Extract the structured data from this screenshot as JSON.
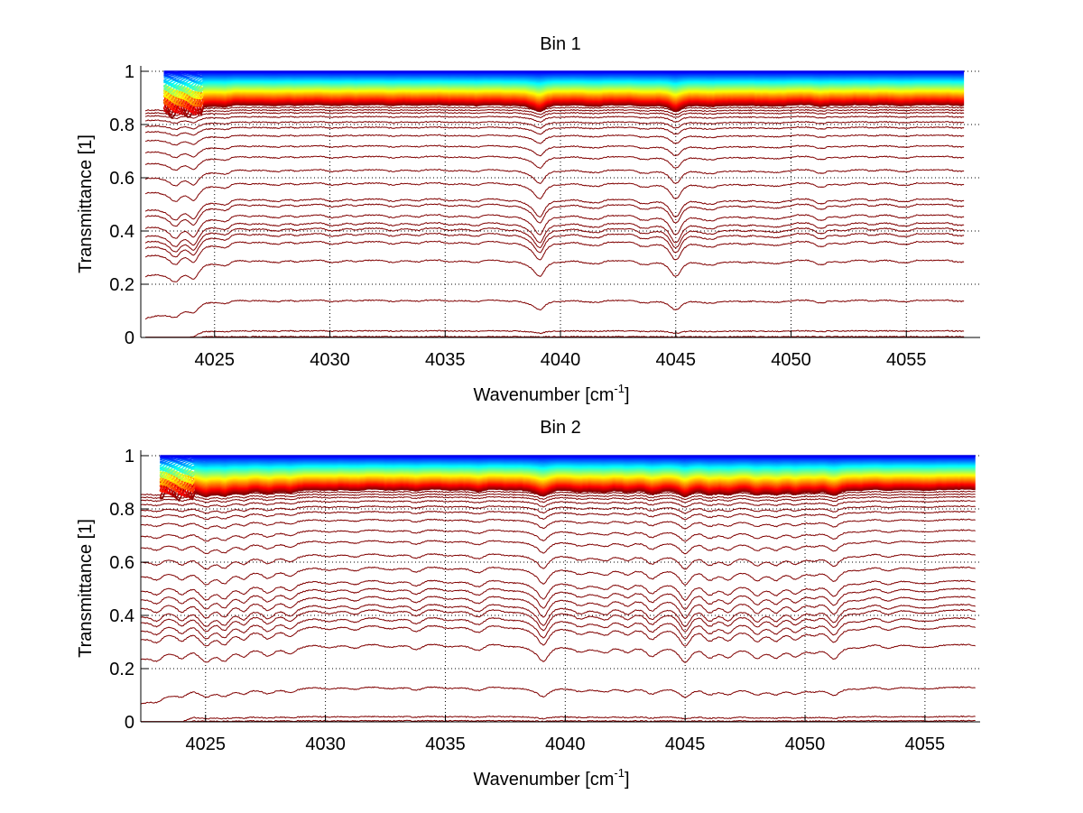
{
  "chart_data": [
    {
      "type": "line",
      "title": "Bin 1",
      "xlabel": "Wavenumber [cm",
      "xlabel_sup": "-1",
      "xlabel_end": "]",
      "ylabel": "Transmittance [1]",
      "xlim": [
        4021.8,
        4058.2
      ],
      "ylim": [
        0,
        1
      ],
      "xticks": [
        4025,
        4030,
        4035,
        4040,
        4045,
        4050,
        4055
      ],
      "yticks": [
        0,
        0.2,
        0.4,
        0.6,
        0.8,
        1
      ],
      "grid": true,
      "colormap": "jet",
      "approx_series_count": 60,
      "baseline_levels": [
        0.003,
        0.025,
        0.14,
        0.29,
        0.36,
        0.39,
        0.41,
        0.43,
        0.46,
        0.5,
        0.52,
        0.58,
        0.63,
        0.68,
        0.72,
        0.76,
        0.79,
        0.81,
        0.83,
        0.845,
        0.855,
        0.865
      ],
      "absorption_lines": [
        {
          "x": 4023.3,
          "depth": 0.9,
          "width": 0.35
        },
        {
          "x": 4024.1,
          "depth": 0.8,
          "width": 0.3
        },
        {
          "x": 4025.5,
          "depth": 0.25,
          "width": 0.3
        },
        {
          "x": 4028.5,
          "depth": 0.15,
          "width": 0.3
        },
        {
          "x": 4031.1,
          "depth": 0.1,
          "width": 0.3
        },
        {
          "x": 4033.8,
          "depth": 0.08,
          "width": 0.3
        },
        {
          "x": 4036.4,
          "depth": 0.08,
          "width": 0.3
        },
        {
          "x": 4039.1,
          "depth": 1.0,
          "width": 0.3
        },
        {
          "x": 4041.7,
          "depth": 0.18,
          "width": 0.3
        },
        {
          "x": 4043.5,
          "depth": 0.12,
          "width": 0.3
        },
        {
          "x": 4045.0,
          "depth": 1.0,
          "width": 0.3
        },
        {
          "x": 4046.6,
          "depth": 0.18,
          "width": 0.3
        },
        {
          "x": 4048.0,
          "depth": 0.22,
          "width": 0.3
        },
        {
          "x": 4049.3,
          "depth": 0.15,
          "width": 0.3
        },
        {
          "x": 4051.3,
          "depth": 0.22,
          "width": 0.3
        },
        {
          "x": 4053.4,
          "depth": 0.1,
          "width": 0.3
        },
        {
          "x": 4055.2,
          "depth": 0.08,
          "width": 0.3
        }
      ],
      "line_range": [
        4022.0,
        4057.5
      ]
    },
    {
      "type": "line",
      "title": "Bin 2",
      "xlabel": "Wavenumber [cm",
      "xlabel_sup": "-1",
      "xlabel_end": "]",
      "ylabel": "Transmittance [1]",
      "xlim": [
        4022.3,
        4057.3
      ],
      "ylim": [
        0,
        1
      ],
      "xticks": [
        4025,
        4030,
        4035,
        4040,
        4045,
        4050,
        4055
      ],
      "yticks": [
        0,
        0.2,
        0.4,
        0.6,
        0.8,
        1
      ],
      "grid": true,
      "colormap": "jet",
      "approx_series_count": 60,
      "baseline_levels": [
        0.004,
        0.02,
        0.13,
        0.29,
        0.36,
        0.39,
        0.42,
        0.44,
        0.47,
        0.5,
        0.53,
        0.58,
        0.63,
        0.68,
        0.72,
        0.76,
        0.79,
        0.81,
        0.83,
        0.845,
        0.855,
        0.865
      ],
      "absorption_lines": [
        {
          "x": 4023.0,
          "depth": 0.4,
          "width": 0.3
        },
        {
          "x": 4024.0,
          "depth": 0.45,
          "width": 0.3
        },
        {
          "x": 4025.0,
          "depth": 0.85,
          "width": 0.35
        },
        {
          "x": 4025.8,
          "depth": 0.9,
          "width": 0.3
        },
        {
          "x": 4026.6,
          "depth": 0.5,
          "width": 0.3
        },
        {
          "x": 4027.6,
          "depth": 0.45,
          "width": 0.3
        },
        {
          "x": 4028.5,
          "depth": 0.55,
          "width": 0.3
        },
        {
          "x": 4031.2,
          "depth": 0.2,
          "width": 0.3
        },
        {
          "x": 4033.8,
          "depth": 0.25,
          "width": 0.3
        },
        {
          "x": 4036.4,
          "depth": 0.28,
          "width": 0.3
        },
        {
          "x": 4039.1,
          "depth": 1.0,
          "width": 0.3
        },
        {
          "x": 4040.6,
          "depth": 0.35,
          "width": 0.3
        },
        {
          "x": 4041.7,
          "depth": 0.4,
          "width": 0.3
        },
        {
          "x": 4042.6,
          "depth": 0.35,
          "width": 0.3
        },
        {
          "x": 4043.6,
          "depth": 0.5,
          "width": 0.3
        },
        {
          "x": 4045.0,
          "depth": 1.0,
          "width": 0.3
        },
        {
          "x": 4046.0,
          "depth": 0.55,
          "width": 0.3
        },
        {
          "x": 4046.8,
          "depth": 0.6,
          "width": 0.3
        },
        {
          "x": 4048.0,
          "depth": 0.8,
          "width": 0.3
        },
        {
          "x": 4048.8,
          "depth": 0.55,
          "width": 0.3
        },
        {
          "x": 4049.6,
          "depth": 0.5,
          "width": 0.3
        },
        {
          "x": 4050.4,
          "depth": 0.4,
          "width": 0.3
        },
        {
          "x": 4051.2,
          "depth": 0.75,
          "width": 0.3
        },
        {
          "x": 4053.4,
          "depth": 0.2,
          "width": 0.3
        },
        {
          "x": 4055.4,
          "depth": 0.15,
          "width": 0.3
        }
      ],
      "line_range": [
        4022.3,
        4057.1
      ]
    }
  ],
  "colors": {
    "low_transmittance": "#800000",
    "mid": "#ff0000",
    "high": "#00007f",
    "grid": "#000000"
  }
}
